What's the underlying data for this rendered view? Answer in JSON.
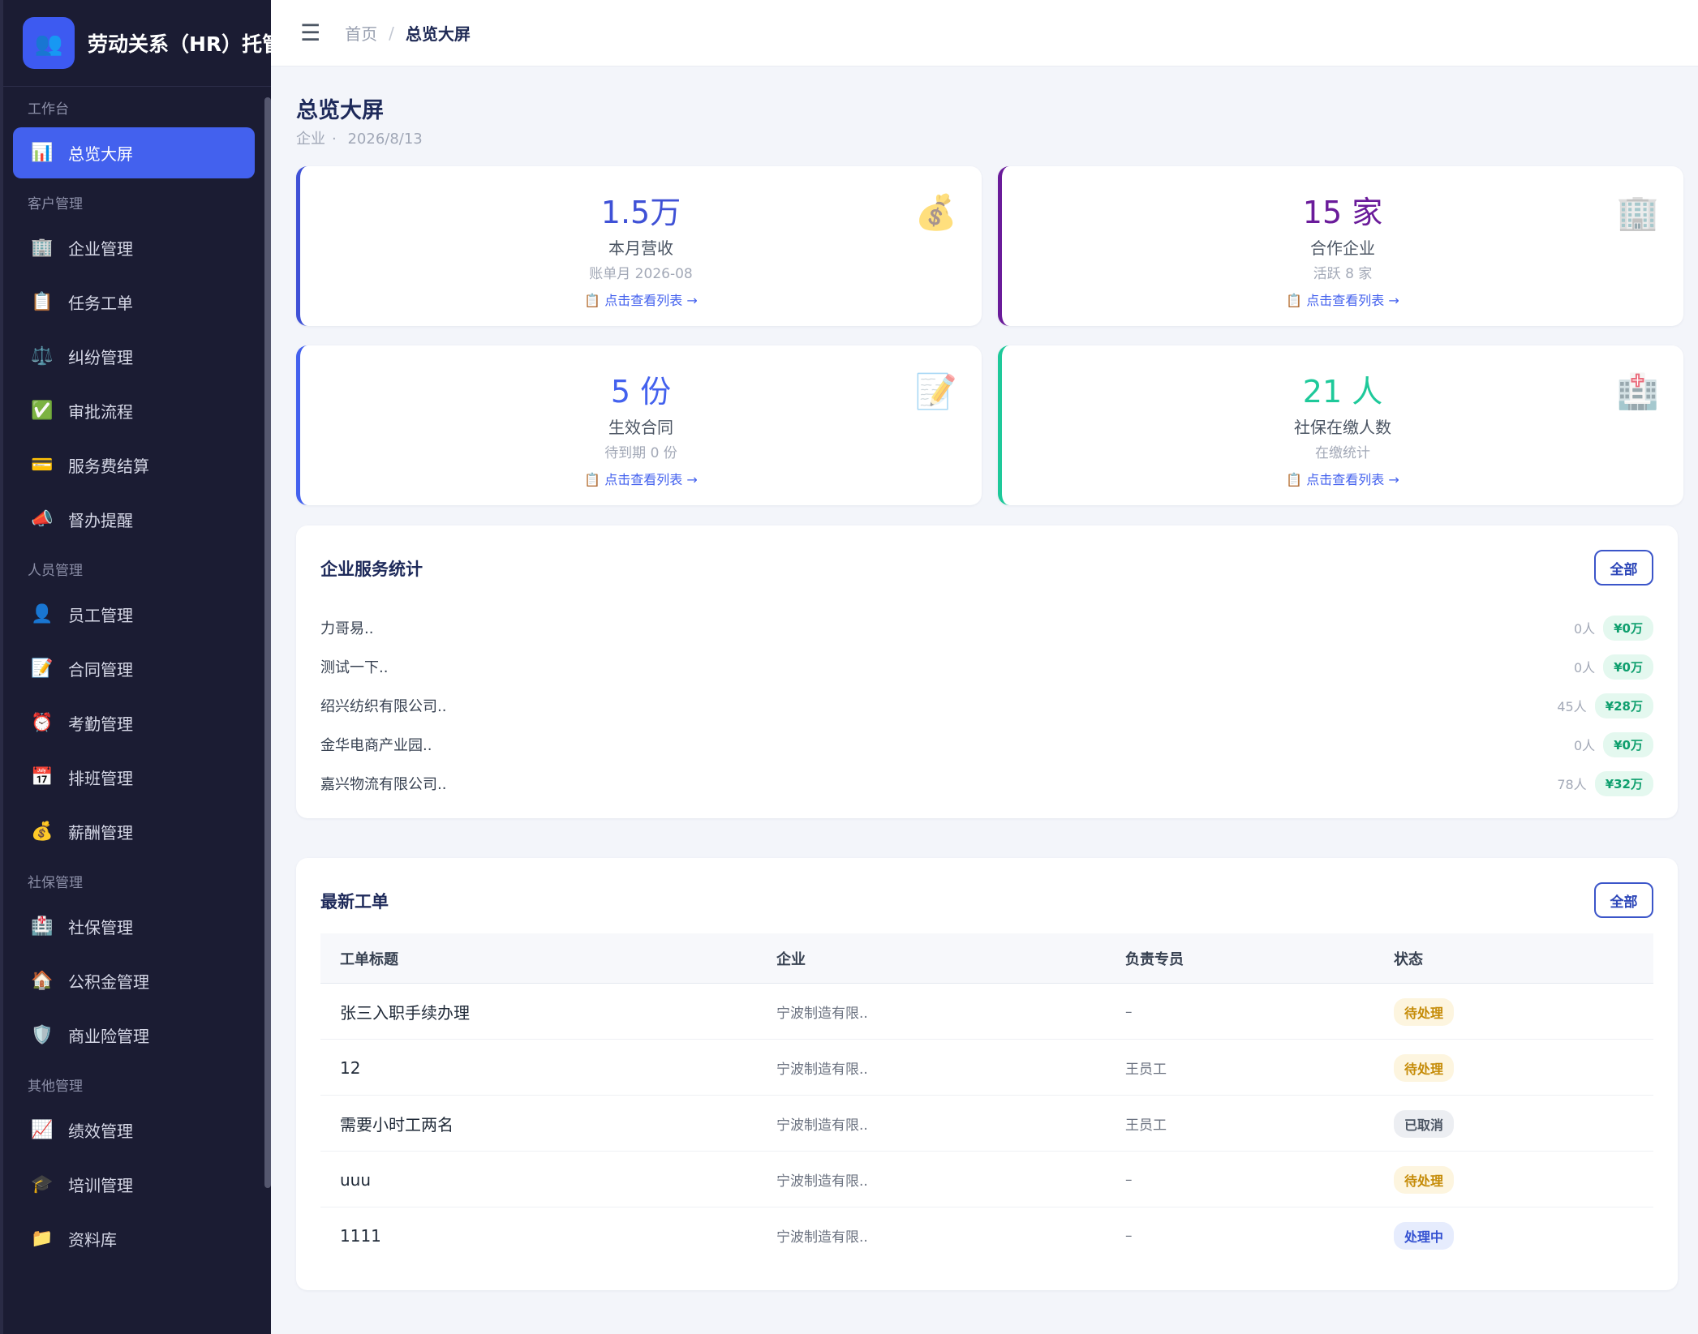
{
  "sidebar": {
    "brand_icon": "👥",
    "brand_title": "劳动关系（HR）托管",
    "groups": [
      {
        "label": "工作台",
        "items": [
          {
            "icon": "📊",
            "label": "总览大屏",
            "active": true
          }
        ]
      },
      {
        "label": "客户管理",
        "items": [
          {
            "icon": "🏢",
            "label": "企业管理"
          },
          {
            "icon": "📋",
            "label": "任务工单"
          },
          {
            "icon": "⚖️",
            "label": "纠纷管理"
          },
          {
            "icon": "✅",
            "label": "审批流程"
          },
          {
            "icon": "💳",
            "label": "服务费结算"
          },
          {
            "icon": "📣",
            "label": "督办提醒"
          }
        ]
      },
      {
        "label": "人员管理",
        "items": [
          {
            "icon": "👤",
            "label": "员工管理"
          },
          {
            "icon": "📝",
            "label": "合同管理"
          },
          {
            "icon": "⏰",
            "label": "考勤管理"
          },
          {
            "icon": "📅",
            "label": "排班管理"
          },
          {
            "icon": "💰",
            "label": "薪酬管理"
          }
        ]
      },
      {
        "label": "社保管理",
        "items": [
          {
            "icon": "🏥",
            "label": "社保管理"
          },
          {
            "icon": "🏠",
            "label": "公积金管理"
          },
          {
            "icon": "🛡️",
            "label": "商业险管理"
          }
        ]
      },
      {
        "label": "其他管理",
        "items": [
          {
            "icon": "📈",
            "label": "绩效管理"
          },
          {
            "icon": "🎓",
            "label": "培训管理"
          },
          {
            "icon": "📁",
            "label": "资料库"
          }
        ]
      }
    ]
  },
  "header": {
    "menu_icon": "☰",
    "breadcrumb_home": "首页",
    "breadcrumb_sep": "/",
    "breadcrumb_current": "总览大屏"
  },
  "page": {
    "title": "总览大屏",
    "sub_role": "企业",
    "sub_dot": "·",
    "sub_date": "2026/8/13"
  },
  "stats": [
    {
      "value": "1.5万",
      "label": "本月营收",
      "hint": "账单月 2026-08",
      "link": "📋 点击查看列表 →",
      "icon": "💰",
      "color": "#3f51d6"
    },
    {
      "value": "15 家",
      "label": "合作企业",
      "hint": "活跃 8 家",
      "link": "📋 点击查看列表 →",
      "icon": "🏢",
      "color": "#6a1b9a"
    },
    {
      "value": "5 份",
      "label": "生效合同",
      "hint": "待到期 0 份",
      "link": "📋 点击查看列表 →",
      "icon": "📝",
      "color": "#4361ee"
    },
    {
      "value": "21 人",
      "label": "社保在缴人数",
      "hint": "在缴统计",
      "link": "📋 点击查看列表 →",
      "icon": "🏥",
      "color": "#1ec99a"
    }
  ],
  "service_stats": {
    "title": "企业服务统计",
    "all_label": "全部",
    "rows": [
      {
        "name": "力哥易..",
        "count": "0人",
        "amount": "¥0万"
      },
      {
        "name": "测试一下..",
        "count": "0人",
        "amount": "¥0万"
      },
      {
        "name": "绍兴纺织有限公司..",
        "count": "45人",
        "amount": "¥28万"
      },
      {
        "name": "金华电商产业园..",
        "count": "0人",
        "amount": "¥0万"
      },
      {
        "name": "嘉兴物流有限公司..",
        "count": "78人",
        "amount": "¥32万"
      }
    ]
  },
  "orders": {
    "title": "最新工单",
    "all_label": "全部",
    "columns": [
      "工单标题",
      "企业",
      "负责专员",
      "状态"
    ],
    "rows": [
      {
        "title": "张三入职手续办理",
        "company": "宁波制造有限..",
        "owner": "–",
        "status": "待处理",
        "status_type": "pending"
      },
      {
        "title": "12",
        "company": "宁波制造有限..",
        "owner": "王员工",
        "status": "待处理",
        "status_type": "pending"
      },
      {
        "title": "需要小时工两名",
        "company": "宁波制造有限..",
        "owner": "王员工",
        "status": "已取消",
        "status_type": "cancel"
      },
      {
        "title": "uuu",
        "company": "宁波制造有限..",
        "owner": "–",
        "status": "待处理",
        "status_type": "pending"
      },
      {
        "title": "1111",
        "company": "宁波制造有限..",
        "owner": "–",
        "status": "处理中",
        "status_type": "doing"
      }
    ]
  }
}
